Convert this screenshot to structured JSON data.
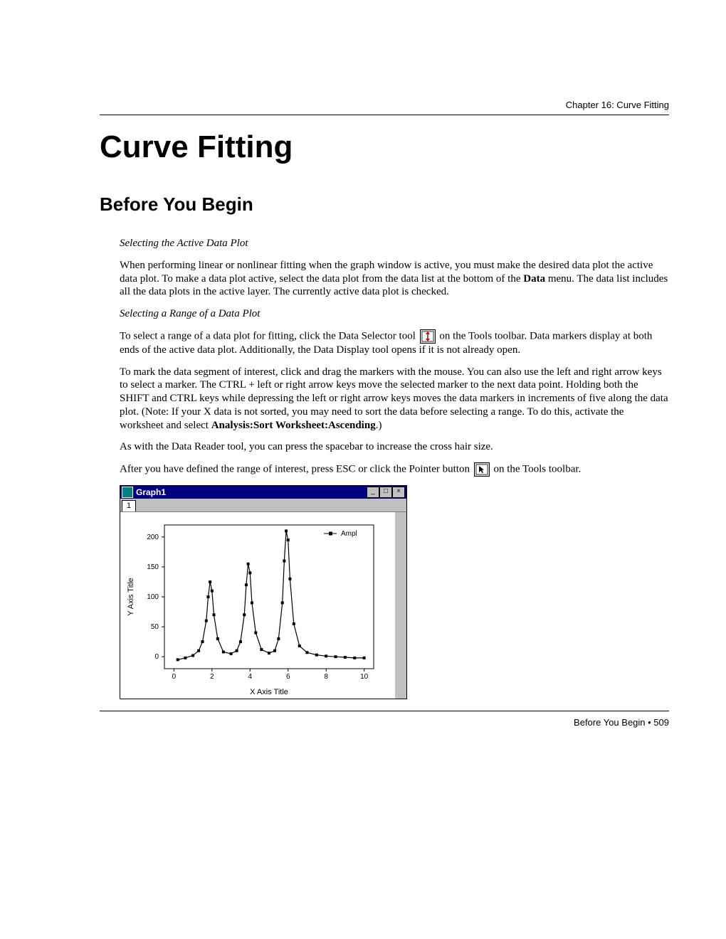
{
  "header": {
    "chapter_label": "Chapter 16:  Curve Fitting"
  },
  "title": "Curve Fitting",
  "section": "Before You Begin",
  "sub1": {
    "heading": "Selecting the Active Data Plot",
    "para1a": "When performing linear or nonlinear fitting when the graph window is active, you must make the desired data plot the active data plot.  To make a data plot active, select the data plot from the data list at the bottom of the ",
    "para1_bold": "Data",
    "para1b": " menu.  The data list includes all the data plots in the active layer.  The currently active data plot is checked."
  },
  "sub2": {
    "heading": "Selecting a Range of a Data Plot",
    "p2a": "To select a range of a data plot for fitting, click the Data Selector tool ",
    "p2b": " on the Tools toolbar.  Data markers display at both ends of the active data plot.  Additionally, the Data Display tool opens if it is not already open.",
    "p3a": "To mark the data segment of interest, click and drag the markers with the mouse.  You can also use the left and right arrow keys to select a marker.  The CTRL + left or right arrow keys move the selected marker to the next data point.  Holding both the SHIFT and CTRL keys while depressing the left or right arrow keys moves the data markers in increments of five along the data plot.  (Note:  If your X data is not sorted, you may need to sort the data before selecting a range.  To do this, activate the worksheet and select ",
    "p3_bold": "Analysis:Sort Worksheet:Ascending",
    "p3b": ".)",
    "p4": "As with the Data Reader tool, you can press the spacebar to increase the cross hair size.",
    "p5a": "After you have defined the range of interest, press ESC or click the Pointer button ",
    "p5b": " on the Tools toolbar."
  },
  "graph": {
    "window_title": "Graph1",
    "tab_label": "1",
    "legend_label": "Ampl",
    "y_label": "Y Axis Title",
    "x_label": "X Axis Title",
    "y_ticks": [
      0,
      50,
      100,
      150,
      200
    ],
    "x_ticks": [
      0,
      2,
      4,
      6,
      8,
      10
    ],
    "ylim": [
      -20,
      220
    ],
    "xlim": [
      -0.5,
      10.5
    ],
    "series_color": "#000000",
    "background": "#ffffff",
    "data_points": [
      {
        "x": 0.2,
        "y": -5
      },
      {
        "x": 0.6,
        "y": -2
      },
      {
        "x": 1.0,
        "y": 2
      },
      {
        "x": 1.3,
        "y": 10
      },
      {
        "x": 1.5,
        "y": 25
      },
      {
        "x": 1.7,
        "y": 60
      },
      {
        "x": 1.8,
        "y": 100
      },
      {
        "x": 1.9,
        "y": 125
      },
      {
        "x": 2.0,
        "y": 110
      },
      {
        "x": 2.1,
        "y": 70
      },
      {
        "x": 2.3,
        "y": 30
      },
      {
        "x": 2.6,
        "y": 8
      },
      {
        "x": 3.0,
        "y": 5
      },
      {
        "x": 3.3,
        "y": 10
      },
      {
        "x": 3.5,
        "y": 25
      },
      {
        "x": 3.7,
        "y": 70
      },
      {
        "x": 3.8,
        "y": 120
      },
      {
        "x": 3.9,
        "y": 155
      },
      {
        "x": 4.0,
        "y": 140
      },
      {
        "x": 4.1,
        "y": 90
      },
      {
        "x": 4.3,
        "y": 40
      },
      {
        "x": 4.6,
        "y": 12
      },
      {
        "x": 5.0,
        "y": 6
      },
      {
        "x": 5.3,
        "y": 10
      },
      {
        "x": 5.5,
        "y": 30
      },
      {
        "x": 5.7,
        "y": 90
      },
      {
        "x": 5.8,
        "y": 160
      },
      {
        "x": 5.9,
        "y": 210
      },
      {
        "x": 6.0,
        "y": 195
      },
      {
        "x": 6.1,
        "y": 130
      },
      {
        "x": 6.3,
        "y": 55
      },
      {
        "x": 6.6,
        "y": 18
      },
      {
        "x": 7.0,
        "y": 7
      },
      {
        "x": 7.5,
        "y": 3
      },
      {
        "x": 8.0,
        "y": 1
      },
      {
        "x": 8.5,
        "y": 0
      },
      {
        "x": 9.0,
        "y": -1
      },
      {
        "x": 9.5,
        "y": -2
      },
      {
        "x": 10.0,
        "y": -2
      }
    ]
  },
  "footer": {
    "text": "Before You Begin  •  509"
  }
}
